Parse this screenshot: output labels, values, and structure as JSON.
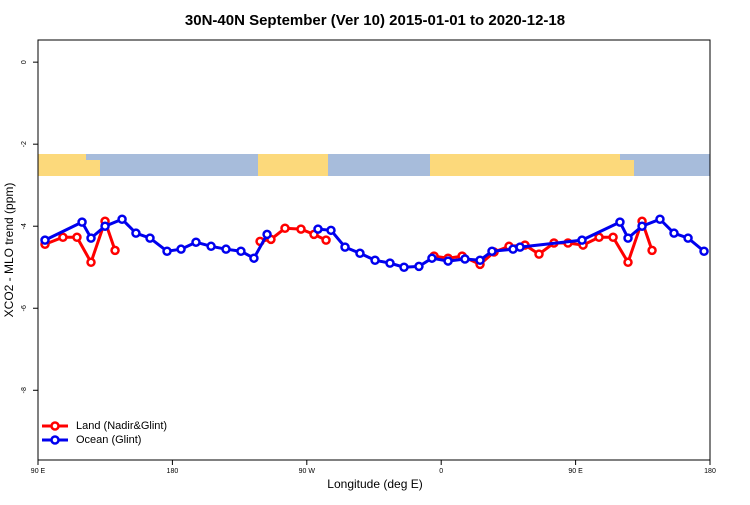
{
  "chart_data": {
    "type": "line",
    "title": "30N-40N September (Ver 10)   2015-01-01 to 2020-12-18",
    "x_label": "Longitude (deg E)",
    "y_label": "XCO2 - MLO trend (ppm)",
    "xlim": [
      90,
      540
    ],
    "ylim": [
      -9.7,
      0.54
    ],
    "xticks": [
      {
        "value": 90,
        "label": "90 E"
      },
      180,
      {
        "value": 270,
        "label": "90 W"
      },
      {
        "value": 360,
        "label": "0"
      },
      {
        "value": 450,
        "label": "90 E"
      },
      {
        "value": 540,
        "label": "180"
      }
    ],
    "yticks": [
      0,
      -2,
      -4,
      -6,
      -8
    ],
    "legend": "bottom-left",
    "series": [
      {
        "name": "Land (Nadir&Glint)",
        "color": "#ff0000",
        "x": [
          94.7,
          106.7,
          116.1,
          125.5,
          134.9,
          141.6,
          null,
          238.7,
          246.0,
          255.4,
          266.1,
          274.8,
          282.9,
          null,
          355.2,
          364.6,
          374.0,
          386.0,
          395.4,
          405.4,
          416.1,
          425.5,
          435.5,
          444.9,
          455.0,
          465.7,
          475.1,
          485.1,
          494.5,
          501.2
        ],
        "values": [
          -4.44,
          -4.27,
          -4.27,
          -4.88,
          -3.88,
          -4.59,
          null,
          -4.37,
          -4.32,
          -4.05,
          -4.07,
          -4.2,
          -4.34,
          null,
          -4.73,
          -4.78,
          -4.73,
          -4.93,
          -4.63,
          -4.49,
          -4.46,
          -4.68,
          -4.41,
          -4.41,
          -4.46,
          -4.27,
          -4.27,
          -4.88,
          -3.88,
          -4.59
        ]
      },
      {
        "name": "Ocean (Glint)",
        "color": "#0000ee",
        "x": [
          94.7,
          119.5,
          125.5,
          134.9,
          146.3,
          155.6,
          165.0,
          176.4,
          185.8,
          195.8,
          205.9,
          215.9,
          225.9,
          234.6,
          243.4,
          null,
          277.5,
          286.2,
          295.6,
          305.6,
          315.7,
          325.7,
          335.1,
          345.1,
          353.8,
          364.6,
          375.9,
          386.0,
          394.0,
          408.1,
          412.8,
          454.3,
          479.7,
          485.1,
          494.5,
          506.5,
          515.9,
          525.3,
          536.0
        ],
        "values": [
          -4.34,
          -3.9,
          -4.29,
          -4.0,
          -3.83,
          -4.17,
          -4.29,
          -4.61,
          -4.56,
          -4.39,
          -4.49,
          -4.56,
          -4.61,
          -4.78,
          -4.2,
          null,
          -4.07,
          -4.1,
          -4.51,
          -4.66,
          -4.83,
          -4.9,
          -5.0,
          -4.98,
          -4.78,
          -4.85,
          -4.8,
          -4.83,
          -4.61,
          -4.56,
          -4.51,
          -4.34,
          -3.9,
          -4.29,
          -4.0,
          -3.83,
          -4.17,
          -4.29,
          -4.61
        ]
      }
    ]
  }
}
